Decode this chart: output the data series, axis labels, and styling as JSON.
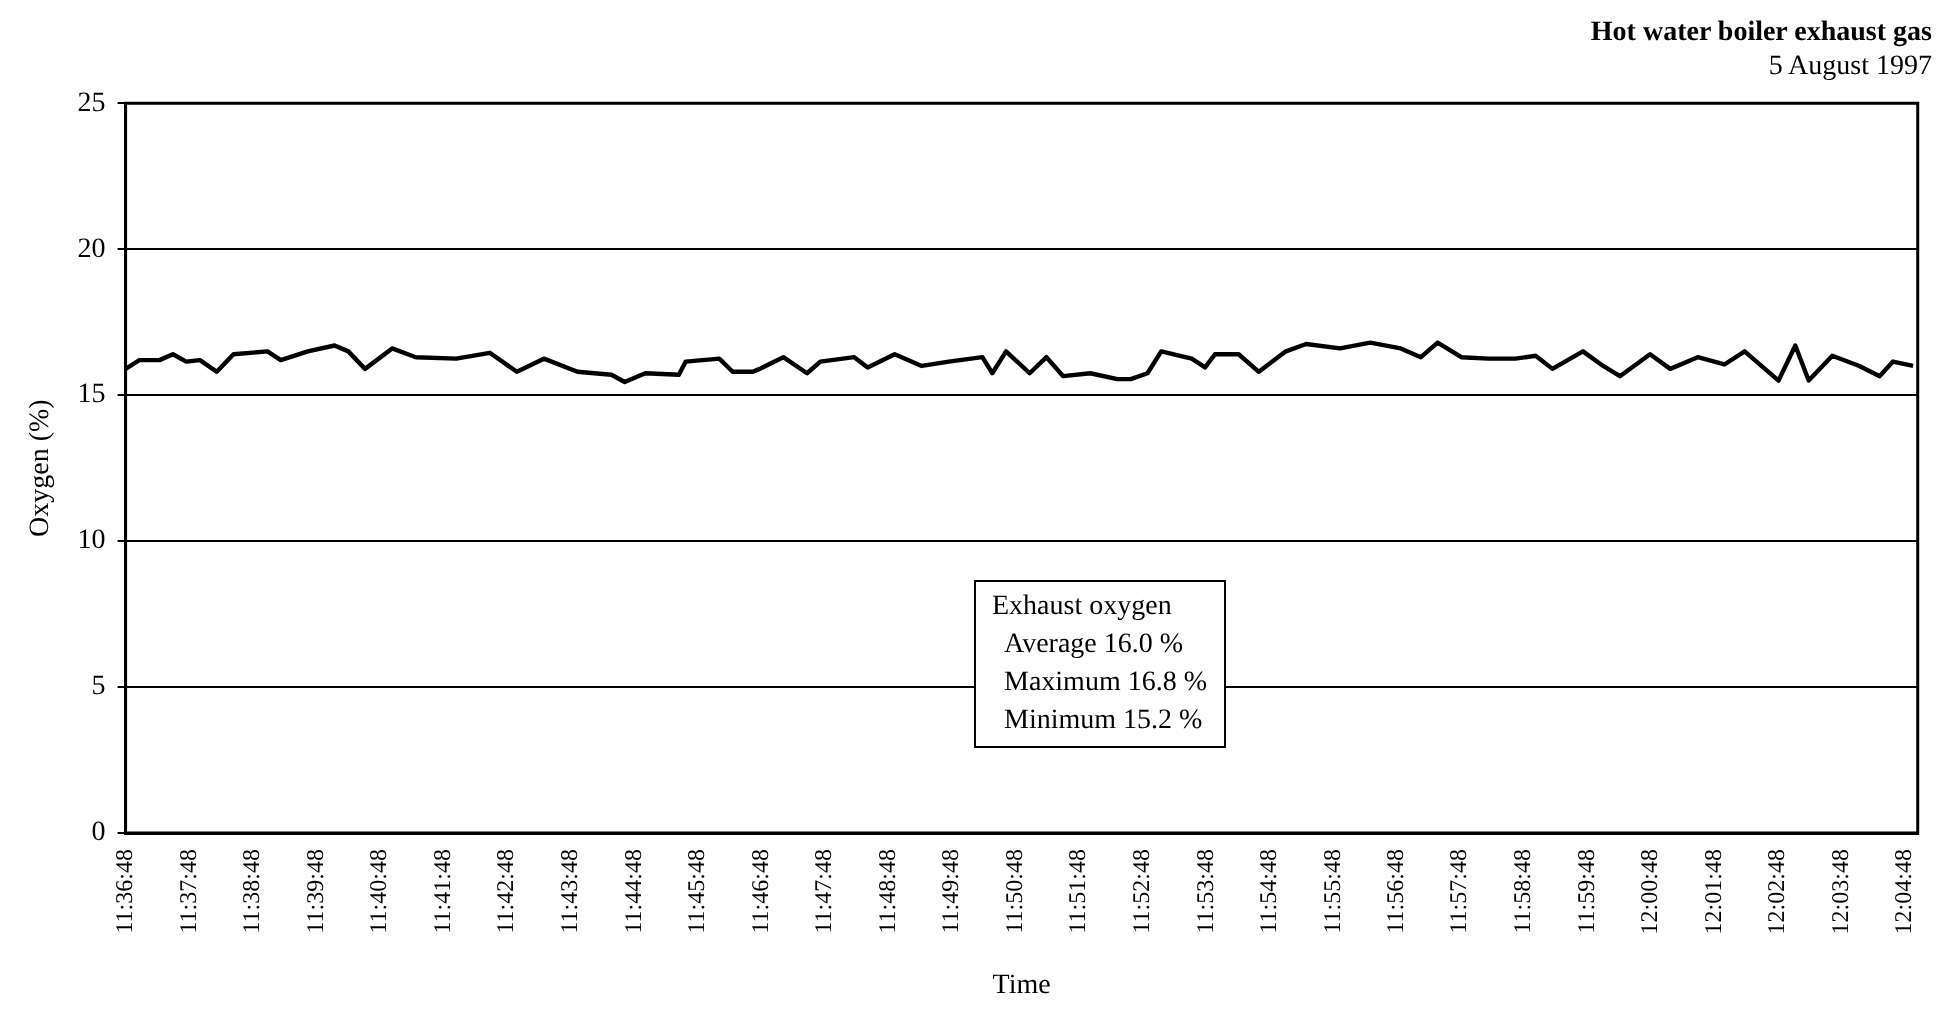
{
  "chart_data": {
    "type": "line",
    "title": "Hot water boiler exhaust gas",
    "subtitle": "5 August 1997",
    "xlabel": "Time",
    "ylabel": "Oxygen (%)",
    "annotations": [
      "Exhaust oxygen",
      "Average 16.0 %",
      "Maximum 16.8 %",
      "Minimum 15.2 %"
    ],
    "x": [
      11.6133,
      11.6169,
      11.6222,
      11.6257,
      11.6292,
      11.6328,
      11.6372,
      11.6416,
      11.6505,
      11.654,
      11.6611,
      11.6681,
      11.6717,
      11.6761,
      11.6832,
      11.6894,
      11.7,
      11.7088,
      11.7159,
      11.723,
      11.7318,
      11.7407,
      11.7442,
      11.7496,
      11.7584,
      11.7602,
      11.769,
      11.7725,
      11.7778,
      11.7796,
      11.7858,
      11.792,
      11.7955,
      11.8044,
      11.8079,
      11.815,
      11.8221,
      11.8292,
      11.838,
      11.8406,
      11.8442,
      11.8504,
      11.8548,
      11.8592,
      11.8663,
      11.8734,
      11.8769,
      11.8813,
      11.8849,
      11.8929,
      11.8964,
      11.899,
      11.9052,
      11.9105,
      11.9176,
      11.9229,
      11.9318,
      11.9397,
      11.9477,
      11.953,
      11.9574,
      11.9636,
      11.9707,
      11.9778,
      11.9831,
      11.9875,
      11.9955,
      12.0008,
      12.0052,
      12.0131,
      12.0184,
      12.0256,
      12.0326,
      12.0379,
      12.0468,
      12.0512,
      12.0547,
      12.0609,
      12.068,
      12.0733,
      12.0768,
      12.0821
    ],
    "series": [
      {
        "color": "#000000",
        "values": [
          15.9,
          16.2,
          16.2,
          16.4,
          16.15,
          16.2,
          15.8,
          16.4,
          16.5,
          16.2,
          16.5,
          16.7,
          16.5,
          15.9,
          16.6,
          16.3,
          16.25,
          16.45,
          15.8,
          16.25,
          15.8,
          15.7,
          15.45,
          15.75,
          15.7,
          16.15,
          16.25,
          15.8,
          15.8,
          15.9,
          16.3,
          15.75,
          16.15,
          16.3,
          15.95,
          16.4,
          16.0,
          16.15,
          16.3,
          15.75,
          16.5,
          15.75,
          16.3,
          15.65,
          15.75,
          15.55,
          15.55,
          15.75,
          16.5,
          16.25,
          15.95,
          16.4,
          16.4,
          15.8,
          16.5,
          16.75,
          16.6,
          16.8,
          16.6,
          16.3,
          16.8,
          16.3,
          16.25,
          16.25,
          16.35,
          15.9,
          16.5,
          16.0,
          15.65,
          16.4,
          15.9,
          16.3,
          16.05,
          16.5,
          15.5,
          16.7,
          15.5,
          16.35,
          16.0,
          15.65,
          16.15,
          16.0
        ]
      }
    ],
    "xlim": [
      11.6133,
      12.0833
    ],
    "xticks": [
      {
        "value": 11.6133,
        "label": "11:36:48"
      },
      {
        "value": 11.63,
        "label": "11:37:48"
      },
      {
        "value": 11.6467,
        "label": "11:38:48"
      },
      {
        "value": 11.6633,
        "label": "11:39:48"
      },
      {
        "value": 11.68,
        "label": "11:40:48"
      },
      {
        "value": 11.6967,
        "label": "11:41:48"
      },
      {
        "value": 11.7133,
        "label": "11:42:48"
      },
      {
        "value": 11.73,
        "label": "11:43:48"
      },
      {
        "value": 11.7467,
        "label": "11:44:48"
      },
      {
        "value": 11.7633,
        "label": "11:45:48"
      },
      {
        "value": 11.78,
        "label": "11:46:48"
      },
      {
        "value": 11.7967,
        "label": "11:47:48"
      },
      {
        "value": 11.8133,
        "label": "11:48:48"
      },
      {
        "value": 11.83,
        "label": "11:49:48"
      },
      {
        "value": 11.8467,
        "label": "11:50:48"
      },
      {
        "value": 11.8633,
        "label": "11:51:48"
      },
      {
        "value": 11.88,
        "label": "11:52:48"
      },
      {
        "value": 11.8967,
        "label": "11:53:48"
      },
      {
        "value": 11.9133,
        "label": "11:54:48"
      },
      {
        "value": 11.93,
        "label": "11:55:48"
      },
      {
        "value": 11.9467,
        "label": "11:56:48"
      },
      {
        "value": 11.9633,
        "label": "11:57:48"
      },
      {
        "value": 11.98,
        "label": "11:58:48"
      },
      {
        "value": 11.9967,
        "label": "11:59:48"
      },
      {
        "value": 12.0133,
        "label": "12:00:48"
      },
      {
        "value": 12.03,
        "label": "12:01:48"
      },
      {
        "value": 12.0467,
        "label": "12:02:48"
      },
      {
        "value": 12.0633,
        "label": "12:03:48"
      },
      {
        "value": 12.08,
        "label": "12:04:48"
      }
    ],
    "ylim": [
      0,
      25
    ],
    "yticks": [
      0,
      5,
      10,
      15,
      20,
      25
    ],
    "grid": "y",
    "legend": false,
    "marker": "none",
    "line_style": "solid"
  }
}
